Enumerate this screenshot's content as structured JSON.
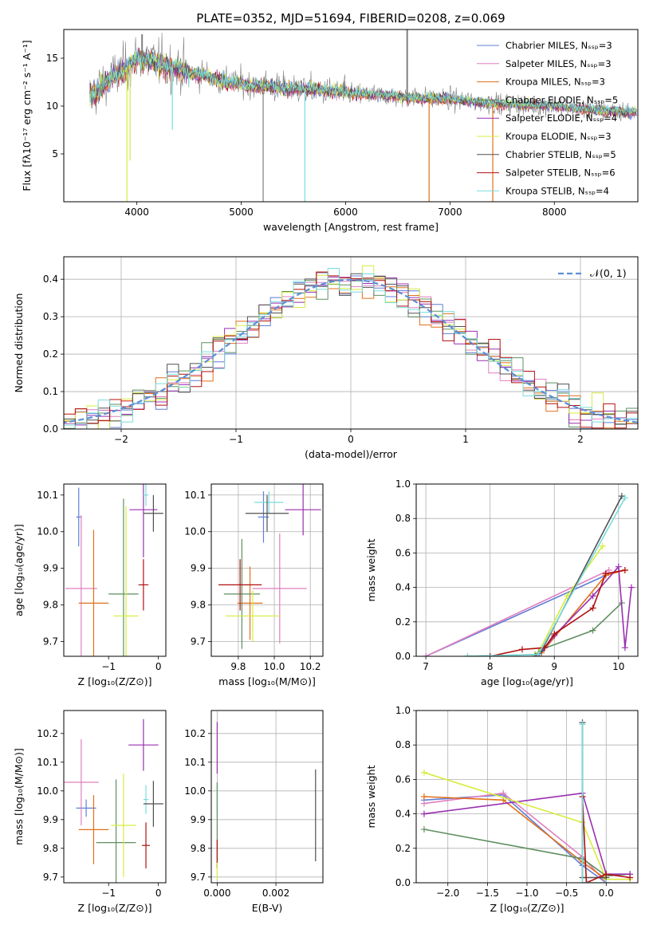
{
  "colors": {
    "chab_miles": "#5f7fd6",
    "salp_miles": "#e07fbf",
    "krou_miles": "#e0701a",
    "chab_elodie": "#5f8f60",
    "salp_elodie": "#9a2fb0",
    "krou_elodie": "#d8ec40",
    "chab_stelib": "#505050",
    "salp_stelib": "#b01010",
    "krou_stelib": "#78dcdc",
    "normal": "#5a8fd8",
    "data": "#808080"
  },
  "chart_data": [
    {
      "id": "spectrum",
      "type": "line",
      "title": "PLATE=0352, MJD=51694, FIBERID=0208, z=0.069",
      "xlabel": "wavelength [Angstrom, rest frame]",
      "ylabel": "Flux [fλ10⁻¹⁷ erg cm⁻² s⁻¹ A⁻¹]",
      "xlim": [
        3300,
        8800
      ],
      "ylim": [
        0,
        18
      ],
      "xticks": [
        4000,
        5000,
        6000,
        7000,
        8000
      ],
      "yticks": [
        5,
        10,
        15
      ],
      "grid": false,
      "legend_position": "top-right",
      "legend": [
        {
          "label": "Chabrier MILES, Nₛₛₚ=3",
          "color": "chab_miles"
        },
        {
          "label": "Salpeter MILES, Nₛₛₚ=3",
          "color": "salp_miles"
        },
        {
          "label": "Kroupa MILES, Nₛₛₚ=3",
          "color": "krou_miles"
        },
        {
          "label": "Chabrier ELODIE, Nₛₛₚ=5",
          "color": "chab_elodie"
        },
        {
          "label": "Salpeter ELODIE, Nₛₛₚ=4",
          "color": "salp_elodie"
        },
        {
          "label": "Kroupa ELODIE, Nₛₛₚ=3",
          "color": "krou_elodie"
        },
        {
          "label": "Chabrier STELIB, Nₛₛₚ=5",
          "color": "chab_stelib"
        },
        {
          "label": "Salpeter STELIB, Nₛₛₚ=6",
          "color": "salp_stelib"
        },
        {
          "label": "Kroupa STELIB, Nₛₛₚ=4",
          "color": "krou_stelib"
        }
      ],
      "continuum": {
        "x": [
          3550,
          3700,
          3900,
          4000,
          4200,
          4500,
          5000,
          5500,
          6000,
          6500,
          7000,
          7500,
          8000,
          8500,
          8800
        ],
        "y": [
          11.0,
          12.5,
          14.0,
          15.0,
          14.6,
          13.5,
          12.3,
          11.8,
          11.4,
          11.0,
          10.7,
          10.2,
          10.0,
          9.5,
          9.3
        ]
      },
      "spikes_down": [
        {
          "x": 3905,
          "y": 0,
          "color": "krou_elodie"
        },
        {
          "x": 3935,
          "y": 4.3,
          "color": "krou_elodie"
        },
        {
          "x": 4340,
          "y": 7.5,
          "color": "krou_stelib"
        },
        {
          "x": 5210,
          "y": 0,
          "color": "data"
        },
        {
          "x": 5610,
          "y": 0,
          "color": "krou_stelib"
        },
        {
          "x": 6800,
          "y": 0,
          "color": "krou_miles"
        },
        {
          "x": 7410,
          "y": 0,
          "color": "krou_miles"
        }
      ],
      "spikes_up": [
        {
          "x": 4050,
          "y": 17.5,
          "color": "data"
        },
        {
          "x": 6590,
          "y": 18,
          "color": "data"
        }
      ]
    },
    {
      "id": "residuals",
      "type": "bar",
      "xlabel": "(data-model)/error",
      "ylabel": "Normed distribution",
      "xlim": [
        -2.5,
        2.5
      ],
      "ylim": [
        0,
        0.46
      ],
      "xticks": [
        -2,
        -1,
        0,
        1,
        2
      ],
      "yticks": [
        0.0,
        0.1,
        0.2,
        0.3,
        0.4
      ],
      "grid": true,
      "legend_position": "top-right",
      "legend": [
        {
          "label": "𝒩(0, 1)",
          "color": "normal"
        }
      ],
      "bin_width": 0.1
    },
    {
      "id": "age_vs_z",
      "type": "scatter",
      "xlabel": "Z [log₁₀(Z/Z⊙)]",
      "ylabel": "age  [log₁₀(age/yr)]",
      "xlim": [
        -1.9,
        0.15
      ],
      "ylim": [
        9.66,
        10.13
      ],
      "xticks": [
        -1,
        0
      ],
      "yticks": [
        9.7,
        9.8,
        9.9,
        10.0,
        10.1
      ],
      "grid": false,
      "points": [
        {
          "c": "chab_miles",
          "x": -1.6,
          "xerr": 0.05,
          "y": 10.04,
          "yerr": 0.08
        },
        {
          "c": "salp_miles",
          "x": -1.55,
          "xerr": 0.32,
          "y": 9.845,
          "yerr": 0.2
        },
        {
          "c": "krou_miles",
          "x": -1.3,
          "xerr": 0.3,
          "y": 9.805,
          "yerr": 0.2
        },
        {
          "c": "chab_elodie",
          "x": -0.7,
          "xerr": 0.3,
          "y": 9.83,
          "yerr": 0.26
        },
        {
          "c": "krou_elodie",
          "x": -0.65,
          "xerr": 0.25,
          "y": 9.77,
          "yerr": 0.3
        },
        {
          "c": "salp_elodie",
          "x": -0.3,
          "xerr": 0.28,
          "y": 10.06,
          "yerr": 0.13
        },
        {
          "c": "krou_stelib",
          "x": -0.25,
          "xerr": 0.05,
          "y": 10.1,
          "yerr": 0.03
        },
        {
          "c": "chab_stelib",
          "x": -0.1,
          "xerr": 0.2,
          "y": 10.05,
          "yerr": 0.05
        },
        {
          "c": "salp_stelib",
          "x": -0.3,
          "xerr": 0.1,
          "y": 9.855,
          "yerr": 0.07
        }
      ]
    },
    {
      "id": "age_vs_mass",
      "type": "scatter",
      "xlabel": "mass [log₁₀(M/M⊙)]",
      "ylabel": "",
      "xlim": [
        9.65,
        10.27
      ],
      "ylim": [
        9.66,
        10.13
      ],
      "xticks": [
        9.8,
        10.0,
        10.2
      ],
      "yticks": [
        9.7,
        9.8,
        9.9,
        10.0,
        10.1
      ],
      "grid": true,
      "points": [
        {
          "c": "chab_miles",
          "x": 9.94,
          "xerr": 0.03,
          "y": 10.04,
          "yerr": 0.07
        },
        {
          "c": "salp_miles",
          "x": 10.03,
          "xerr": 0.15,
          "y": 9.845,
          "yerr": 0.15
        },
        {
          "c": "krou_miles",
          "x": 9.865,
          "xerr": 0.07,
          "y": 9.805,
          "yerr": 0.1
        },
        {
          "c": "chab_elodie",
          "x": 9.82,
          "xerr": 0.1,
          "y": 9.83,
          "yerr": 0.15
        },
        {
          "c": "krou_elodie",
          "x": 9.88,
          "xerr": 0.15,
          "y": 9.77,
          "yerr": 0.07
        },
        {
          "c": "salp_elodie",
          "x": 10.16,
          "xerr": 0.1,
          "y": 10.06,
          "yerr": 0.07
        },
        {
          "c": "krou_stelib",
          "x": 9.97,
          "xerr": 0.08,
          "y": 10.08,
          "yerr": 0.03
        },
        {
          "c": "chab_stelib",
          "x": 9.96,
          "xerr": 0.12,
          "y": 10.05,
          "yerr": 0.05
        },
        {
          "c": "salp_stelib",
          "x": 9.81,
          "xerr": 0.12,
          "y": 9.855,
          "yerr": 0.07
        }
      ]
    },
    {
      "id": "mass_weight_vs_age",
      "type": "line",
      "xlabel": "age  [log₁₀(age/yr)]",
      "ylabel": "mass weight",
      "xlim": [
        6.85,
        10.3
      ],
      "ylim": [
        0,
        1
      ],
      "xticks": [
        7,
        8,
        9,
        10
      ],
      "yticks": [
        0.0,
        0.2,
        0.4,
        0.6,
        0.8,
        1.0
      ],
      "grid": true,
      "series": [
        {
          "c": "chab_miles",
          "x": [
            7.0,
            9.8
          ],
          "y": [
            0.0,
            0.47
          ]
        },
        {
          "c": "salp_miles",
          "x": [
            7.0,
            9.85
          ],
          "y": [
            0.0,
            0.5
          ]
        },
        {
          "c": "krou_miles",
          "x": [
            8.8,
            9.8,
            10.1
          ],
          "y": [
            0.02,
            0.47,
            0.5
          ]
        },
        {
          "c": "chab_elodie",
          "x": [
            7.65,
            8.7,
            8.8,
            9.6,
            10.05
          ],
          "y": [
            0.0,
            0.01,
            0.04,
            0.15,
            0.31
          ]
        },
        {
          "c": "salp_elodie",
          "x": [
            8.75,
            9.0,
            9.6,
            10.0,
            10.1,
            10.2
          ],
          "y": [
            0.0,
            0.12,
            0.35,
            0.52,
            0.05,
            0.4
          ]
        },
        {
          "c": "krou_elodie",
          "x": [
            8.75,
            9.2,
            9.75
          ],
          "y": [
            0.02,
            0.35,
            0.64
          ]
        },
        {
          "c": "chab_stelib",
          "x": [
            8.7,
            8.8,
            10.05
          ],
          "y": [
            0.0,
            0.03,
            0.93
          ]
        },
        {
          "c": "salp_stelib",
          "x": [
            8.0,
            8.5,
            8.85,
            9.0,
            9.6,
            9.8,
            10.1
          ],
          "y": [
            0.0,
            0.04,
            0.05,
            0.13,
            0.28,
            0.48,
            0.5
          ]
        },
        {
          "c": "krou_stelib",
          "x": [
            7.65,
            8.75,
            10.1
          ],
          "y": [
            0.0,
            0.01,
            0.92
          ]
        }
      ]
    },
    {
      "id": "mass_vs_z",
      "type": "scatter",
      "xlabel": "Z [log₁₀(Z/Z⊙)]",
      "ylabel": "mass [log₁₀(M/M⊙)]",
      "xlim": [
        -1.9,
        0.15
      ],
      "ylim": [
        9.68,
        10.28
      ],
      "xticks": [
        -1,
        0
      ],
      "yticks": [
        9.7,
        9.8,
        9.9,
        10.0,
        10.1,
        10.2
      ],
      "grid": false,
      "points": [
        {
          "c": "chab_miles",
          "x": -1.45,
          "xerr": 0.2,
          "y": 9.94,
          "yerr": 0.03
        },
        {
          "c": "salp_miles",
          "x": -1.55,
          "xerr": 0.35,
          "y": 10.03,
          "yerr": 0.15
        },
        {
          "c": "krou_miles",
          "x": -1.3,
          "xerr": 0.3,
          "y": 9.865,
          "yerr": 0.12
        },
        {
          "c": "chab_elodie",
          "x": -0.85,
          "xerr": 0.4,
          "y": 9.82,
          "yerr": 0.22
        },
        {
          "c": "krou_elodie",
          "x": -0.7,
          "xerr": 0.25,
          "y": 9.88,
          "yerr": 0.18
        },
        {
          "c": "salp_elodie",
          "x": -0.3,
          "xerr": 0.3,
          "y": 10.16,
          "yerr": 0.09
        },
        {
          "c": "krou_stelib",
          "x": -0.25,
          "xerr": 0.05,
          "y": 9.97,
          "yerr": 0.05
        },
        {
          "c": "chab_stelib",
          "x": -0.1,
          "xerr": 0.2,
          "y": 9.955,
          "yerr": 0.08
        },
        {
          "c": "salp_stelib",
          "x": -0.25,
          "xerr": 0.08,
          "y": 9.81,
          "yerr": 0.08
        }
      ]
    },
    {
      "id": "mass_vs_ebv",
      "type": "scatter",
      "xlabel": "E(B-V)",
      "ylabel": "",
      "xlim": [
        -0.0002,
        0.0036
      ],
      "ylim": [
        9.68,
        10.28
      ],
      "xticks": [
        0.0,
        0.002
      ],
      "yticks": [
        9.7,
        9.8,
        9.9,
        10.0,
        10.1,
        10.2
      ],
      "grid": true,
      "points": [
        {
          "c": "salp_elodie",
          "x": 0.0,
          "xerr": 0,
          "y": 10.15,
          "yerr": 0.09
        },
        {
          "c": "krou_stelib",
          "x": 0.0,
          "xerr": 0,
          "y": 9.97,
          "yerr": 0.05
        },
        {
          "c": "chab_elodie",
          "x": 0.0,
          "xerr": 0,
          "y": 9.88,
          "yerr": 0.15
        },
        {
          "c": "salp_stelib",
          "x": 0.0,
          "xerr": 0,
          "y": 9.78,
          "yerr": 0.05
        },
        {
          "c": "krou_elodie",
          "x": 0.0,
          "xerr": 0,
          "y": 9.72,
          "yerr": 0.03
        },
        {
          "c": "chab_stelib",
          "x": 0.00335,
          "xerr": 0,
          "y": 9.915,
          "yerr": 0.16
        }
      ]
    },
    {
      "id": "mass_weight_vs_z",
      "type": "line",
      "xlabel": "Z [log₁₀(Z/Z⊙)]",
      "ylabel": "mass weight",
      "xlim": [
        -2.4,
        0.4
      ],
      "ylim": [
        0,
        1
      ],
      "xticks": [
        -2.0,
        -1.5,
        -1.0,
        -0.5,
        0.0
      ],
      "yticks": [
        0.0,
        0.2,
        0.4,
        0.6,
        0.8,
        1.0
      ],
      "grid": true,
      "series": [
        {
          "c": "chab_miles",
          "x": [
            -2.3,
            -1.3,
            -0.3,
            0.0
          ],
          "y": [
            0.48,
            0.51,
            0.1,
            0.0
          ]
        },
        {
          "c": "salp_miles",
          "x": [
            -2.3,
            -1.3,
            -0.3,
            0.0
          ],
          "y": [
            0.46,
            0.52,
            0.15,
            0.0
          ]
        },
        {
          "c": "krou_miles",
          "x": [
            -2.3,
            -1.3,
            -0.3,
            0.0
          ],
          "y": [
            0.5,
            0.48,
            0.12,
            0.02
          ]
        },
        {
          "c": "chab_elodie",
          "x": [
            -2.3,
            -0.3,
            0.0,
            0.3
          ],
          "y": [
            0.31,
            0.14,
            0.04,
            0.05
          ]
        },
        {
          "c": "salp_elodie",
          "x": [
            -2.3,
            -0.3,
            0.0,
            0.3
          ],
          "y": [
            0.4,
            0.52,
            0.05,
            0.05
          ]
        },
        {
          "c": "krou_elodie",
          "x": [
            -2.3,
            -0.3,
            0.0,
            0.3
          ],
          "y": [
            0.64,
            0.35,
            0.02,
            0.02
          ]
        },
        {
          "c": "chab_stelib",
          "x": [
            -0.3,
            -0.3,
            0.0
          ],
          "y": [
            0.93,
            0.03,
            0.03
          ]
        },
        {
          "c": "salp_stelib",
          "x": [
            -0.3,
            -0.25,
            0.0,
            0.3
          ],
          "y": [
            0.5,
            0.0,
            0.05,
            0.03
          ]
        },
        {
          "c": "krou_stelib",
          "x": [
            -0.3,
            -0.3,
            0.0
          ],
          "y": [
            0.92,
            0.0,
            0.0
          ]
        }
      ]
    }
  ]
}
